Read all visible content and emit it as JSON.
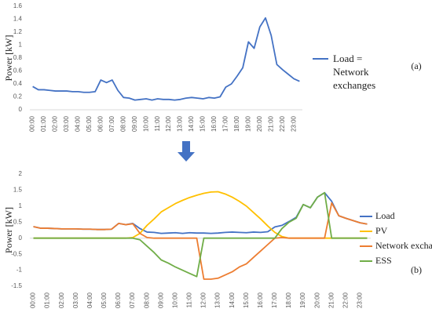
{
  "chart_data": [
    {
      "type": "line",
      "panel_label": "(a)",
      "y_label": "Power [kW]",
      "categories": [
        "00:00",
        null,
        "01:00",
        null,
        "02:00",
        null,
        "03:00",
        null,
        "04:00",
        null,
        "05:00",
        null,
        "06:00",
        null,
        "07:00",
        null,
        "08:00",
        null,
        "09:00",
        null,
        "10:00",
        null,
        "11:00",
        null,
        "12:00",
        null,
        "13:00",
        null,
        "14:00",
        null,
        "15:00",
        null,
        "16:00",
        null,
        "17:00",
        null,
        "18:00",
        null,
        "19:00",
        null,
        "20:00",
        null,
        "21:00",
        null,
        "22:00",
        null,
        "23:00",
        null
      ],
      "series": [
        {
          "name": "Load = Network exchanges",
          "color": "#4472c4",
          "values": [
            0.36,
            0.31,
            0.31,
            0.3,
            0.29,
            0.29,
            0.29,
            0.28,
            0.28,
            0.27,
            0.27,
            0.28,
            0.46,
            0.42,
            0.46,
            0.3,
            0.19,
            0.18,
            0.15,
            0.16,
            0.17,
            0.15,
            0.17,
            0.16,
            0.16,
            0.15,
            0.16,
            0.18,
            0.19,
            0.18,
            0.17,
            0.19,
            0.18,
            0.2,
            0.35,
            0.4,
            0.52,
            0.65,
            1.05,
            0.95,
            1.28,
            1.42,
            1.15,
            0.7,
            0.62,
            0.55,
            0.48,
            0.44
          ]
        }
      ],
      "ylim": [
        0,
        1.6
      ],
      "yticks": [
        0,
        0.2,
        0.4,
        0.6,
        0.8,
        1,
        1.2,
        1.4,
        1.6
      ],
      "grid": false,
      "legend": "right"
    },
    {
      "type": "line",
      "panel_label": "(b)",
      "y_label": "Power [kW]",
      "categories": [
        "00:00",
        null,
        "01:00",
        null,
        "02:00",
        null,
        "03:00",
        null,
        "04:00",
        null,
        "05:00",
        null,
        "06:00",
        null,
        "07:00",
        null,
        "08:00",
        null,
        "09:00",
        null,
        "10:00",
        null,
        "11:00",
        null,
        "12:00",
        null,
        "13:00",
        null,
        "14:00",
        null,
        "15:00",
        null,
        "16:00",
        null,
        "17:00",
        null,
        "18:00",
        null,
        "19:00",
        null,
        "20:00",
        null,
        "21:00",
        null,
        "22:00",
        null,
        "23:00",
        null
      ],
      "series": [
        {
          "name": "Load",
          "color": "#4472c4",
          "values": [
            0.36,
            0.31,
            0.31,
            0.3,
            0.29,
            0.29,
            0.29,
            0.28,
            0.28,
            0.27,
            0.27,
            0.28,
            0.46,
            0.42,
            0.46,
            0.3,
            0.19,
            0.18,
            0.15,
            0.16,
            0.17,
            0.15,
            0.17,
            0.16,
            0.16,
            0.15,
            0.16,
            0.18,
            0.19,
            0.18,
            0.17,
            0.19,
            0.18,
            0.2,
            0.35,
            0.4,
            0.52,
            0.65,
            1.05,
            0.95,
            1.28,
            1.42,
            1.15,
            0.7,
            0.62,
            0.55,
            0.48,
            0.44
          ]
        },
        {
          "name": "PV",
          "color": "#ffc000",
          "values": [
            0,
            0,
            0,
            0,
            0,
            0,
            0,
            0,
            0,
            0,
            0,
            0,
            0,
            0,
            0.02,
            0.15,
            0.4,
            0.6,
            0.82,
            0.95,
            1.08,
            1.18,
            1.27,
            1.34,
            1.4,
            1.44,
            1.45,
            1.38,
            1.28,
            1.15,
            1.0,
            0.8,
            0.6,
            0.38,
            0.18,
            0.05,
            0,
            0,
            0,
            0,
            0,
            0,
            0,
            0,
            0,
            0,
            0,
            0
          ]
        },
        {
          "name": "Network exchanges",
          "color": "#ed7d31",
          "values": [
            0.36,
            0.31,
            0.31,
            0.3,
            0.29,
            0.29,
            0.29,
            0.28,
            0.28,
            0.27,
            0.27,
            0.28,
            0.46,
            0.42,
            0.45,
            0.15,
            0.02,
            0,
            0,
            0,
            0,
            0,
            0,
            0,
            -1.28,
            -1.28,
            -1.25,
            -1.15,
            -1.05,
            -0.9,
            -0.8,
            -0.6,
            -0.4,
            -0.2,
            0,
            0.02,
            0,
            0,
            0,
            0,
            0,
            0,
            1.1,
            0.7,
            0.62,
            0.55,
            0.48,
            0.44
          ]
        },
        {
          "name": "ESS",
          "color": "#70ad47",
          "values": [
            0,
            0,
            0,
            0,
            0,
            0,
            0,
            0,
            0,
            0,
            0,
            0,
            0,
            0,
            0,
            -0.05,
            -0.25,
            -0.45,
            -0.68,
            -0.78,
            -0.9,
            -1.0,
            -1.1,
            -1.2,
            0,
            0,
            0,
            0,
            0,
            0,
            0,
            0,
            0,
            0,
            0,
            0.3,
            0.5,
            0.62,
            1.05,
            0.95,
            1.28,
            1.42,
            0,
            0,
            0,
            0,
            0,
            0
          ]
        }
      ],
      "ylim": [
        -1.5,
        2
      ],
      "yticks": [
        -1.5,
        -1,
        -0.5,
        0,
        0.5,
        1,
        1.5,
        2
      ],
      "grid": false,
      "legend": "right"
    }
  ]
}
